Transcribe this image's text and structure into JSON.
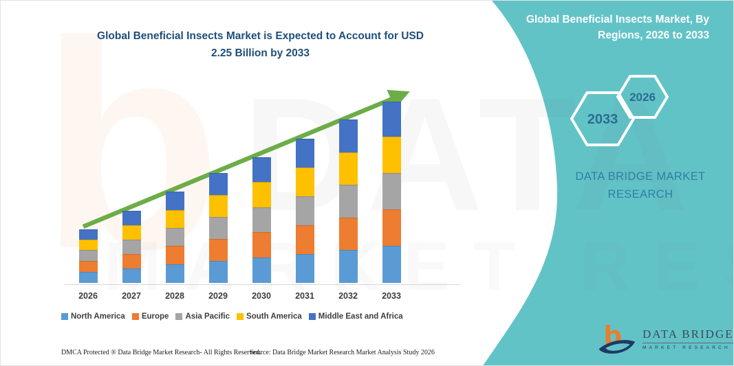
{
  "theme": {
    "teal": "#62C3C7",
    "title_blue": "#1F4E79",
    "arrow_green": "#6CAD47",
    "hex_label": "#2B6D90",
    "panel_text": "#2F7EA5",
    "axis_gray": "#D6D6D6",
    "label_gray": "#3D3D3D",
    "footer_ink": "#1B1B1B",
    "logo_navy": "#1F3864",
    "logo_orange": "#E87E2E",
    "logo_slate": "#3C4A59"
  },
  "main_title": {
    "line1": "Global Beneficial Insects Market is Expected to Account for USD",
    "line2": "2.25 Billion by 2033"
  },
  "chart_data": {
    "type": "bar",
    "stacked": true,
    "title": "Global Beneficial Insects Market is Expected to Account for USD 2.25 Billion by 2033",
    "unit": "USD Billion",
    "categories": [
      "2026",
      "2027",
      "2028",
      "2029",
      "2030",
      "2031",
      "2032",
      "2033"
    ],
    "series": [
      {
        "name": "North America",
        "color": "#5B9BD5",
        "values": [
          0.14,
          0.18,
          0.23,
          0.27,
          0.32,
          0.36,
          0.41,
          0.46
        ]
      },
      {
        "name": "Europe",
        "color": "#ED7D31",
        "values": [
          0.14,
          0.18,
          0.23,
          0.27,
          0.32,
          0.36,
          0.4,
          0.45
        ]
      },
      {
        "name": "Asia Pacific",
        "color": "#A5A5A5",
        "values": [
          0.14,
          0.18,
          0.22,
          0.27,
          0.31,
          0.36,
          0.41,
          0.45
        ]
      },
      {
        "name": "South America",
        "color": "#FFC000",
        "values": [
          0.13,
          0.18,
          0.22,
          0.27,
          0.32,
          0.36,
          0.4,
          0.45
        ]
      },
      {
        "name": "Middle East and Africa",
        "color": "#4472C4",
        "values": [
          0.13,
          0.18,
          0.23,
          0.27,
          0.31,
          0.36,
          0.41,
          0.44
        ]
      }
    ],
    "totals": [
      0.68,
      0.9,
      1.13,
      1.35,
      1.58,
      1.8,
      2.03,
      2.25
    ],
    "ylim": [
      0,
      2.4
    ],
    "grid": false,
    "y_axis_visible": false,
    "legend_position": "bottom",
    "trend_arrow": true
  },
  "right_panel": {
    "title_line1": "Global Beneficial Insects Market, By",
    "title_line2": "Regions, 2026 to 2033",
    "hexagons": [
      {
        "label": "2033"
      },
      {
        "label": "2026"
      }
    ],
    "brand_line1": "DATA BRIDGE MARKET",
    "brand_line2": "RESEARCH"
  },
  "footer": {
    "dmca": "DMCA Protected ® Data Bridge Market Research-  All Rights Reserved.",
    "source": "Source: Data Bridge Market Research  Market Analysis Study 2026"
  },
  "logo": {
    "glyph": "b",
    "name": "DATA BRIDGE",
    "subtitle": "MARKET RESEARCH"
  },
  "watermark": {
    "glyph": "b",
    "text_primary": "DATA BRIDGE",
    "text_secondary": "MARKET RESEARCH"
  }
}
